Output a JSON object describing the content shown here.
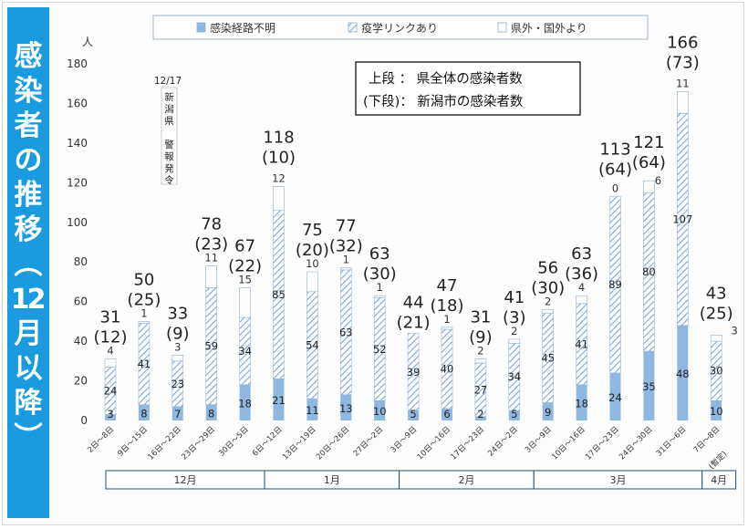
{
  "side_title": "感染者の推移（12月以降）",
  "legend": [
    {
      "label": "感染経路不明",
      "kind": "solid"
    },
    {
      "label": "疫学リンクあり",
      "kind": "hatch"
    },
    {
      "label": "県外・国外より",
      "kind": "empty"
    }
  ],
  "note": [
    "上段 ： 県全体の感染者数",
    "(下段)： 新潟市の感染者数"
  ],
  "alert": {
    "date": "12/17",
    "lines": [
      "新",
      "潟",
      "県",
      "",
      "警",
      "報",
      "発",
      "令"
    ]
  },
  "colors": {
    "title_bg": "#1a9be0",
    "unknown": "#8fb8e0",
    "hatch": "#6f9fd8",
    "outside": "#ffffff",
    "bar_border": "#8aaed6",
    "frame": "#1f4e79"
  },
  "chart_data": {
    "type": "bar",
    "stacked": true,
    "ylabel": "人",
    "ylim": [
      0,
      180
    ],
    "yticks": [
      0,
      20,
      40,
      60,
      80,
      100,
      120,
      140,
      160,
      180
    ],
    "grid": false,
    "categories": [
      "2日～8日",
      "9日～15日",
      "16日～22日",
      "23日～29日",
      "30日～5日",
      "6日～12日",
      "13日～19日",
      "20日～26日",
      "27日～2日",
      "3日～9日",
      "10日～16日",
      "17日～23日",
      "24日～2日",
      "3日～9日",
      "10日～16日",
      "17日～23日",
      "24日～30日",
      "31日～6日",
      "7日～8日"
    ],
    "series": [
      {
        "name": "感染経路不明",
        "values": [
          3,
          8,
          7,
          8,
          18,
          21,
          11,
          13,
          10,
          5,
          6,
          2,
          5,
          9,
          18,
          24,
          35,
          48,
          10
        ]
      },
      {
        "name": "疫学リンクあり",
        "values": [
          24,
          41,
          23,
          59,
          34,
          85,
          54,
          63,
          52,
          39,
          40,
          27,
          34,
          45,
          41,
          89,
          80,
          107,
          30
        ]
      },
      {
        "name": "県外・国外より",
        "values": [
          4,
          1,
          3,
          11,
          15,
          12,
          10,
          1,
          1,
          0,
          1,
          2,
          2,
          2,
          4,
          0,
          6,
          11,
          3
        ]
      }
    ],
    "segment_labels": {
      "unknown": [
        "3",
        "8",
        "7",
        "8",
        "18",
        "21",
        "11",
        "13",
        "10",
        "5",
        "6",
        "2",
        "5",
        "9",
        "18",
        "24",
        "35",
        "48",
        "10"
      ],
      "link": [
        "24",
        "41",
        "23",
        "59",
        "34",
        "85",
        "54",
        "63",
        "52",
        "39",
        "40",
        "27",
        "34",
        "45",
        "41",
        "89",
        "80",
        "107",
        "30"
      ],
      "outside": [
        "4",
        "1",
        "3",
        "11",
        "15",
        "12",
        "10",
        "1",
        "1",
        "",
        "1",
        "2",
        "2",
        "2",
        "4",
        "0",
        "6",
        "11",
        "3"
      ]
    },
    "totals": [
      "31",
      "50",
      "33",
      "78",
      "67",
      "118",
      "75",
      "77",
      "63",
      "44",
      "47",
      "31",
      "41",
      "56",
      "63",
      "113",
      "121",
      "166",
      "43"
    ],
    "niigata_city": [
      "(12)",
      "(25)",
      "(9)",
      "(23)",
      "(22)",
      "(10)",
      "(20)",
      "(32)",
      "(30)",
      "(21)",
      "(18)",
      "(9)",
      "(3)",
      "(30)",
      "(36)",
      "(64)",
      "(64)",
      "(73)",
      "(25)"
    ],
    "provisional_label": "(暫定)",
    "months": [
      {
        "label": "12月",
        "from": 0,
        "to": 4
      },
      {
        "label": "1月",
        "from": 5,
        "to": 8
      },
      {
        "label": "2月",
        "from": 9,
        "to": 12
      },
      {
        "label": "3月",
        "from": 13,
        "to": 17
      },
      {
        "label": "4月",
        "from": 18,
        "to": 18
      }
    ]
  }
}
